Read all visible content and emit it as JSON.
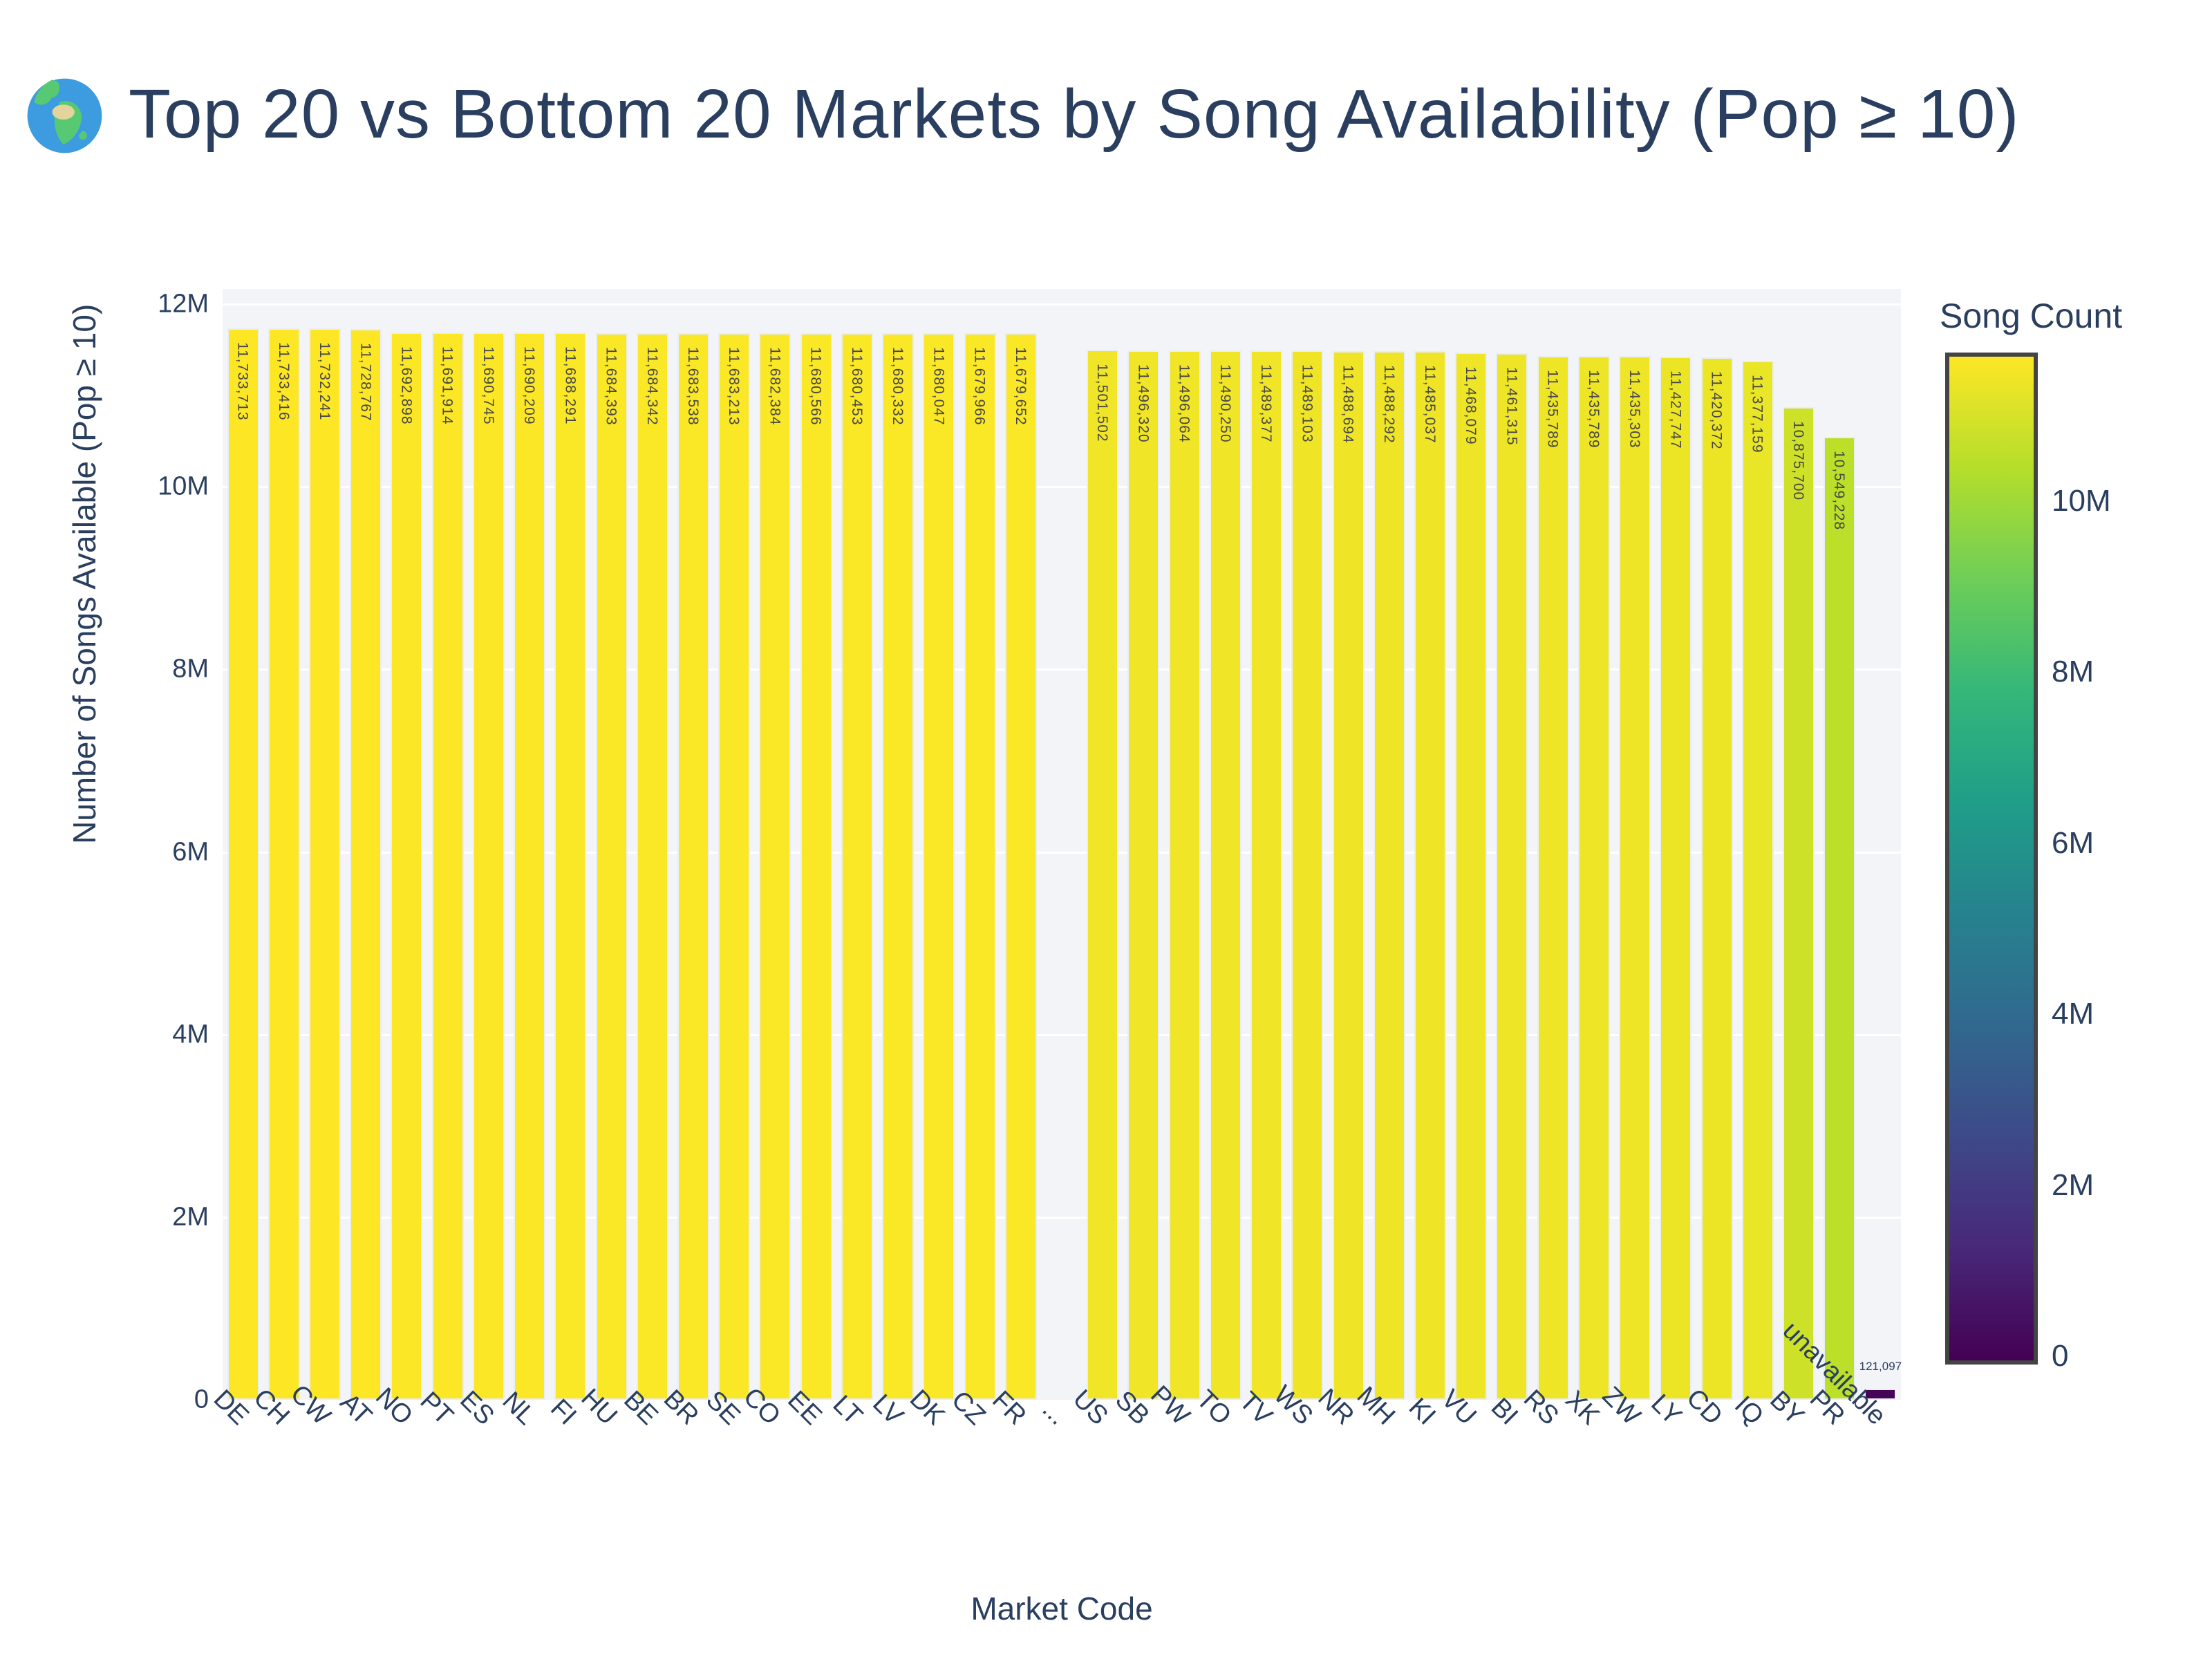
{
  "title": {
    "text": "Top 20 vs Bottom 20 Markets by Song Availability (Pop ≥ 10)",
    "icon": "globe-europe-africa"
  },
  "colors": {
    "text": "#2a3f5f",
    "plot_background": "#f3f4f7",
    "gridline": "#ffffff",
    "bar_inside_label": "#474747",
    "bar_border": "#e9edf4",
    "colorbar_border": "#444444",
    "figure_background": "#ffffff"
  },
  "viridis_scale": [
    "#440154",
    "#482878",
    "#3e4989",
    "#31688e",
    "#26828e",
    "#1f9e89",
    "#35b779",
    "#6ece58",
    "#b5de2b",
    "#fde725"
  ],
  "chart_data": {
    "type": "bar",
    "title": "Top 20 vs Bottom 20 Markets by Song Availability (Pop ≥ 10)",
    "xlabel": "Market Code",
    "ylabel": "Number of Songs Available (Pop ≥ 10)",
    "ylim": [
      0,
      12000000
    ],
    "grid": true,
    "legend_position": "right-colorbar",
    "ytick_labels": [
      "0",
      "2M",
      "4M",
      "6M",
      "8M",
      "10M",
      "12M"
    ],
    "ytick_values": [
      0,
      2000000,
      4000000,
      6000000,
      8000000,
      10000000,
      12000000
    ],
    "categories": [
      "DE",
      "CH",
      "CW",
      "AT",
      "NO",
      "PT",
      "ES",
      "NL",
      "FI",
      "HU",
      "BE",
      "BR",
      "SE",
      "CO",
      "EE",
      "LT",
      "LV",
      "DK",
      "CZ",
      "FR",
      "...",
      "US",
      "SB",
      "PW",
      "TO",
      "TV",
      "WS",
      "NR",
      "MH",
      "KI",
      "VU",
      "BI",
      "RS",
      "XK",
      "ZW",
      "LY",
      "CD",
      "IQ",
      "BY",
      "PR",
      "unavailable"
    ],
    "values": [
      11733713,
      11733416,
      11732241,
      11728767,
      11692898,
      11691914,
      11690745,
      11690209,
      11688291,
      11684393,
      11684342,
      11683538,
      11683213,
      11682384,
      11680566,
      11680453,
      11680332,
      11680047,
      11679966,
      11679652,
      null,
      11501502,
      11496320,
      11496064,
      11490250,
      11489377,
      11489103,
      11488694,
      11488292,
      11485037,
      11468079,
      11461315,
      11435789,
      11435789,
      11435303,
      11427747,
      11420372,
      11377159,
      10875700,
      10549228,
      121097
    ],
    "color_encoding": {
      "by": "value",
      "scale": "viridis",
      "cmin": 0,
      "cmax": 11733713
    },
    "colorbar": {
      "title": "Song Count",
      "tick_labels": [
        "0",
        "2M",
        "4M",
        "6M",
        "8M",
        "10M"
      ],
      "tick_values": [
        0,
        2000000,
        4000000,
        6000000,
        8000000,
        10000000
      ]
    }
  }
}
